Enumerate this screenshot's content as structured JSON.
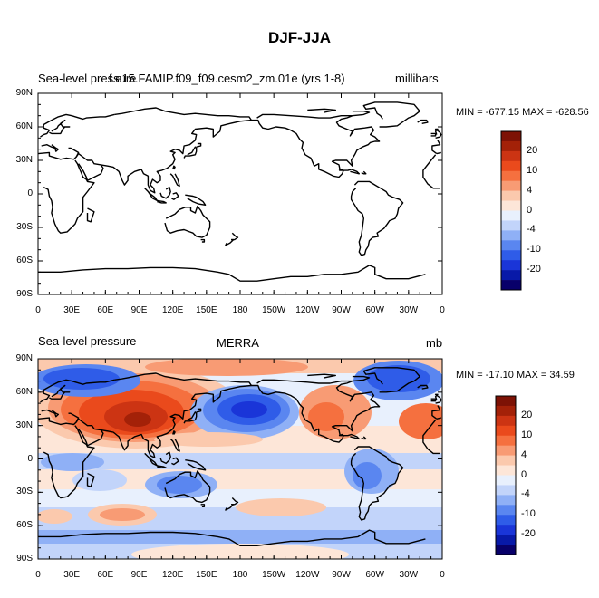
{
  "figure": {
    "title": "DJF-JJA"
  },
  "panels": [
    {
      "left_title": "Sea-level pressure",
      "center_title": "f.e15.FAMIP.f09_f09.cesm2_zm.01e (yrs 1-8)",
      "right_title": "millibars",
      "stats": "MIN = -677.15 MAX = -628.56",
      "lat_ticks": [
        "90N",
        "60N",
        "30N",
        "0",
        "30S",
        "60S",
        "90S"
      ],
      "lon_ticks": [
        "0",
        "30E",
        "60E",
        "90E",
        "120E",
        "150E",
        "180",
        "150W",
        "120W",
        "90W",
        "60W",
        "30W",
        "0"
      ],
      "colorbar_labels": [
        "20",
        "10",
        "4",
        "0",
        "-4",
        "-10",
        "-20"
      ]
    },
    {
      "left_title": "Sea-level pressure",
      "center_title": "MERRA",
      "right_title": "mb",
      "stats": "MIN = -17.10 MAX =  34.59",
      "lat_ticks": [
        "90N",
        "60N",
        "30N",
        "0",
        "30S",
        "60S",
        "90S"
      ],
      "lon_ticks": [
        "0",
        "30E",
        "60E",
        "90E",
        "120E",
        "150E",
        "180",
        "150W",
        "120W",
        "90W",
        "60W",
        "30W",
        "0"
      ],
      "colorbar_labels": [
        "20",
        "10",
        "4",
        "0",
        "-4",
        "-10",
        "-20"
      ]
    }
  ],
  "colors": {
    "palette": [
      "#08006a",
      "#0819a8",
      "#1a35d8",
      "#2f5ce8",
      "#5a86f0",
      "#8fb0f6",
      "#c2d4fa",
      "#e8f0fd",
      "#fde6d8",
      "#fbc9ad",
      "#f89b74",
      "#f5703f",
      "#ea4a1c",
      "#cc3413",
      "#a32108",
      "#7d1205"
    ]
  }
}
